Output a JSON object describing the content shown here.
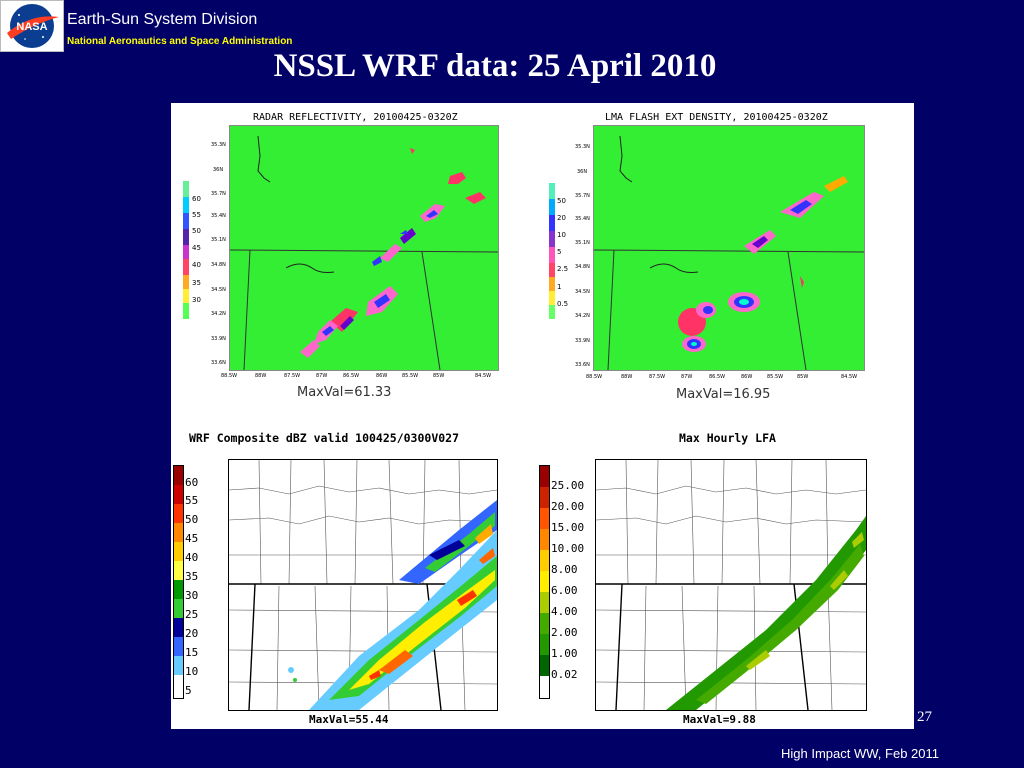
{
  "header": {
    "logo_text": "NASA",
    "division": "Earth-Sun System Division",
    "agency": "National Aeronautics and Space Administration"
  },
  "slide_title": "NSSL WRF data: 25 April 2010",
  "panels": {
    "radar": {
      "title": "RADAR REFLECTIVITY, 20100425-0320Z",
      "maxval": "MaxVal=61.33",
      "colorbar": [
        "60",
        "55",
        "50",
        "45",
        "40",
        "35",
        "30"
      ],
      "colors": [
        "#00ffcc",
        "#00aaff",
        "#3333ff",
        "#6600cc",
        "#ff66cc",
        "#ff3366",
        "#ffaa00",
        "#ffff33",
        "#66ff66"
      ]
    },
    "lma": {
      "title": "LMA FLASH EXT DENSITY, 20100425-0320Z",
      "maxval": "MaxVal=16.95",
      "colorbar": [
        "50",
        "20",
        "10",
        "5",
        "2.5",
        "1",
        "0.5"
      ],
      "colors": [
        "#00ffcc",
        "#00aaff",
        "#3333ff",
        "#6600cc",
        "#ff66cc",
        "#ff3366",
        "#ffaa00",
        "#ffff33",
        "#66ff66"
      ]
    },
    "wrf_dbz": {
      "title": "WRF Composite dBZ valid 100425/0300V027",
      "maxval": "MaxVal=55.44",
      "colorbar": [
        "60",
        "55",
        "50",
        "45",
        "40",
        "35",
        "30",
        "25",
        "20",
        "15",
        "10",
        "5"
      ],
      "colors": [
        "#990000",
        "#cc0000",
        "#ff3300",
        "#ff6600",
        "#ffaa00",
        "#ffee00",
        "#009900",
        "#33cc33",
        "#000099",
        "#3366ff",
        "#66ccff",
        "#ffffff"
      ]
    },
    "wrf_lfa": {
      "title": "Max Hourly LFA",
      "maxval": "MaxVal=9.88",
      "colorbar": [
        "25.00",
        "20.00",
        "15.00",
        "10.00",
        "8.00",
        "6.00",
        "4.00",
        "2.00",
        "1.00",
        "0.02"
      ],
      "colors": [
        "#990000",
        "#cc2200",
        "#ff5500",
        "#ff8800",
        "#ffcc00",
        "#ffee00",
        "#aacc00",
        "#44aa00",
        "#229900",
        "#006600",
        "#ffffff"
      ]
    }
  },
  "axis_labels": {
    "lat": [
      "35.3N",
      "36N",
      "35.7N",
      "35.4N",
      "35.1N",
      "34.8N",
      "34.5N",
      "34.2N",
      "33.9N",
      "33.6N"
    ],
    "lon": [
      "88.5W",
      "88W",
      "87.5W",
      "87W",
      "86.5W",
      "86W",
      "85.5W",
      "85W",
      "84.5W"
    ]
  },
  "page_number": "27",
  "footer": "High Impact WW, Feb 2011",
  "colors": {
    "background": "#000066",
    "map_green": "#33ee33",
    "footer_text": "#ffffff",
    "agency_text": "#ffff00"
  }
}
